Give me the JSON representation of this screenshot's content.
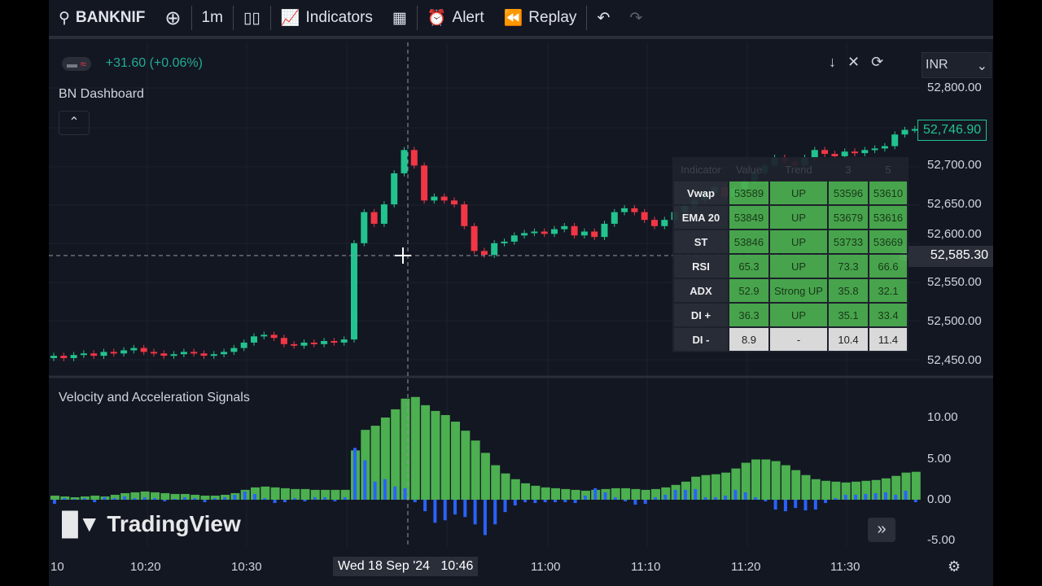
{
  "toolbar": {
    "symbol": "BANKNIF",
    "interval": "1m",
    "indicators": "Indicators",
    "alert": "Alert",
    "replay": "Replay"
  },
  "legend": {
    "change": "+31.60 (+0.06%)",
    "indicator1": "BN Dashboard",
    "indicator2": "Velocity and Acceleration Signals"
  },
  "currency": "INR",
  "price_axis": [
    "52,800.00",
    "52,700.00",
    "52,650.00",
    "52,600.00",
    "52,550.00",
    "52,500.00",
    "52,450.00"
  ],
  "last_price": "52,746.90",
  "crosshair_price": "52,585.30",
  "osc_axis": [
    "10.00",
    "5.00",
    "0.00",
    "-5.00"
  ],
  "time_axis": [
    "10",
    "10:20",
    "10:30",
    "11:00",
    "11:10",
    "11:20",
    "11:30"
  ],
  "crosshair_time": "Wed 18 Sep '24   10:46",
  "logo": "TradingView",
  "dashboard": {
    "headers": [
      "Indicator",
      "Value",
      "Trend",
      "3",
      "5"
    ],
    "rows": [
      [
        "Vwap",
        "53589",
        "UP",
        "53596",
        "53610"
      ],
      [
        "EMA 20",
        "53849",
        "UP",
        "53679",
        "53616"
      ],
      [
        "ST",
        "53846",
        "UP",
        "53733",
        "53669"
      ],
      [
        "RSI",
        "65.3",
        "UP",
        "73.3",
        "66.6"
      ],
      [
        "ADX",
        "52.9",
        "Strong UP",
        "35.8",
        "32.1"
      ],
      [
        "DI +",
        "36.3",
        "UP",
        "35.1",
        "33.4"
      ],
      [
        "DI -",
        "8.9",
        "-",
        "10.4",
        "11.4"
      ]
    ]
  },
  "colors": {
    "up": "#22c38e",
    "down": "#f23645",
    "hist_green": "#4caf50",
    "hist_blue": "#2962ff",
    "bg": "#131722"
  },
  "candles_close": [
    52455,
    52452,
    52456,
    52458,
    52455,
    52460,
    52458,
    52462,
    52465,
    52460,
    52458,
    52455,
    52457,
    52460,
    52458,
    52455,
    52457,
    52460,
    52465,
    52472,
    52480,
    52482,
    52478,
    52470,
    52468,
    52472,
    52470,
    52474,
    52472,
    52476,
    52600,
    52640,
    52625,
    52650,
    52690,
    52720,
    52700,
    52655,
    52660,
    52655,
    52650,
    52622,
    52590,
    52585,
    52600,
    52602,
    52610,
    52613,
    52615,
    52612,
    52618,
    52622,
    52610,
    52615,
    52608,
    52625,
    52640,
    52645,
    52640,
    52630,
    52622,
    52630,
    52640,
    52648,
    52655,
    52665,
    52672,
    52660,
    52670,
    52680,
    52690,
    52700,
    52710,
    52705,
    52700,
    52710,
    52720,
    52715,
    52712,
    52718,
    52716,
    52720,
    52722,
    52725,
    52740,
    52746,
    52747
  ],
  "osc_green": [
    0.5,
    0.4,
    0.3,
    0.4,
    0.5,
    0.4,
    0.6,
    0.8,
    0.9,
    1,
    0.9,
    0.8,
    0.7,
    0.7,
    0.6,
    0.5,
    0.5,
    0.6,
    0.8,
    1.2,
    1.5,
    1.6,
    1.5,
    1.4,
    1.3,
    1.3,
    1.2,
    1.2,
    1.2,
    1.2,
    6,
    8.5,
    9,
    10,
    11,
    12.3,
    12.5,
    11.5,
    10.8,
    10.3,
    9.5,
    8.4,
    7.2,
    5.7,
    4.2,
    3.2,
    2.5,
    2,
    1.7,
    1.5,
    1.4,
    1.3,
    1.2,
    1.1,
    1.2,
    1.3,
    1.4,
    1.4,
    1.3,
    1.2,
    1.3,
    1.5,
    1.8,
    2.2,
    2.8,
    3,
    3.1,
    3.3,
    3.8,
    4.5,
    4.9,
    4.9,
    4.7,
    4.2,
    3.6,
    3,
    2.5,
    2.3,
    2.2,
    2.1,
    2.2,
    2.3,
    2.4,
    2.6,
    2.9,
    3.3,
    3.4
  ],
  "osc_blue": [
    -0.5,
    0.2,
    0.1,
    0.2,
    -0.3,
    0.3,
    0.2,
    0.4,
    0.2,
    0.3,
    0.2,
    -0.2,
    0.1,
    0.3,
    0.2,
    -0.3,
    0.2,
    0.3,
    0.6,
    1,
    0.7,
    0.2,
    -0.4,
    -0.3,
    0.2,
    -0.2,
    0.3,
    0.3,
    -0.2,
    0.3,
    6.3,
    4.8,
    2.2,
    2.5,
    1.6,
    1.4,
    -0.3,
    -1.4,
    -2.8,
    -2.5,
    -1.8,
    -2.1,
    -3,
    -4.3,
    -3,
    -1.5,
    -0.7,
    -0.3,
    -0.4,
    -0.3,
    -0.3,
    -0.3,
    -0.4,
    0.5,
    1.4,
    0.9,
    0.3,
    -0.2,
    -0.6,
    -0.5,
    0.3,
    0.6,
    1.2,
    1.2,
    1.3,
    0.3,
    0.3,
    0.5,
    1.2,
    0.9,
    0.3,
    -0.2,
    -1.2,
    -1.4,
    -1,
    -1.3,
    -1.2,
    -0.4,
    0.2,
    0.6,
    0.6,
    0.7,
    0.8,
    0.9,
    0.6,
    1.1,
    -0.3
  ]
}
